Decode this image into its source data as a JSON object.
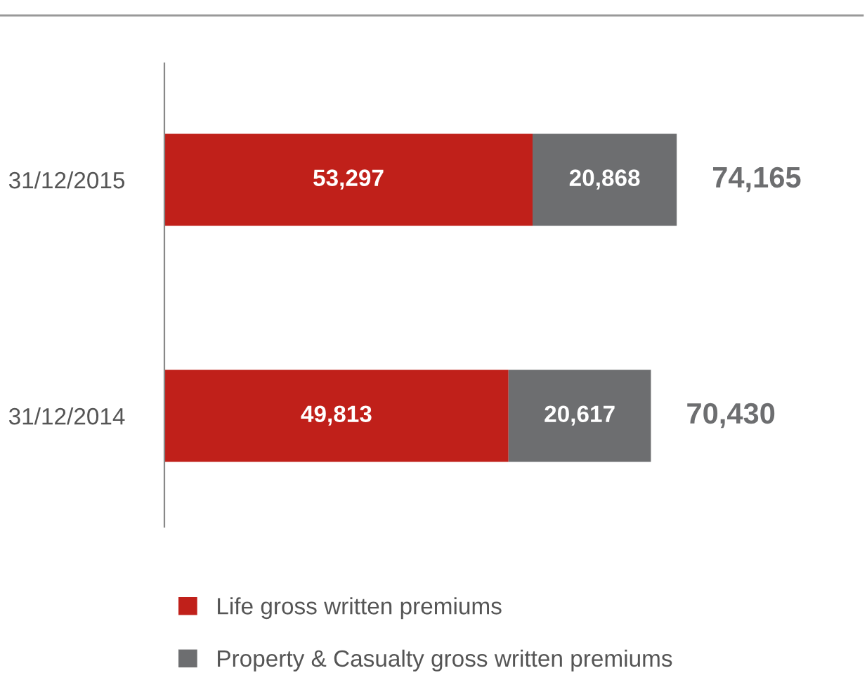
{
  "chart_data": {
    "type": "bar",
    "orientation": "horizontal",
    "stacked": true,
    "categories": [
      "31/12/2015",
      "31/12/2014"
    ],
    "series": [
      {
        "name": "Life gross written premiums",
        "color": "#c0201a",
        "values": [
          53297,
          49813
        ],
        "value_labels": [
          "53,297",
          "49,813"
        ]
      },
      {
        "name": "Property & Casualty gross written premiums",
        "color": "#6d6e70",
        "values": [
          20868,
          20617
        ],
        "value_labels": [
          "20,868",
          "20,617"
        ]
      }
    ],
    "totals": [
      "74,165",
      "70,430"
    ],
    "legend": "bottom",
    "grid": false
  }
}
